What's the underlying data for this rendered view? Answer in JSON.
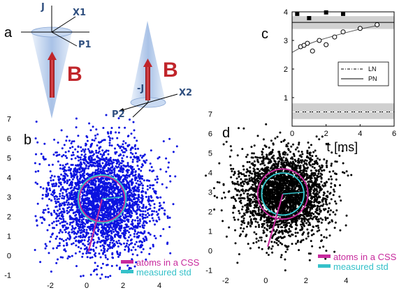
{
  "panels": {
    "a": "a",
    "b": "b",
    "c": "c",
    "d": "d"
  },
  "diagram": {
    "cone1_labels": {
      "J": "J",
      "X": "X1",
      "P": "P1",
      "B": "B"
    },
    "cone2_labels": {
      "J": "-J",
      "X": "X2",
      "P": "P2",
      "B": "B"
    },
    "colors": {
      "cone": "#a9c4ea",
      "arrow": "#c0252a",
      "label": "#2f4f7f"
    }
  },
  "chart_data": [
    {
      "panel": "c",
      "type": "scatter",
      "xlabel": "τ [ms]",
      "ylabel": "",
      "xlim": [
        0,
        6
      ],
      "ylim": [
        0,
        4
      ],
      "xticks": [
        "0",
        "2",
        "4",
        "6"
      ],
      "yticks": [
        "1",
        "2",
        "3",
        "4"
      ],
      "series": [
        {
          "name": "",
          "marker": "filled-square",
          "x": [
            0.3,
            1.0,
            2.0,
            3.0
          ],
          "y": [
            3.93,
            3.78,
            3.98,
            3.93
          ]
        },
        {
          "name": "",
          "marker": "open-circle",
          "x": [
            0.5,
            0.7,
            0.9,
            1.2,
            1.6,
            2.0,
            2.5,
            3.0,
            4.0,
            5.0
          ],
          "y": [
            2.78,
            2.83,
            2.9,
            2.63,
            3.0,
            2.85,
            3.12,
            3.3,
            3.42,
            3.55
          ]
        }
      ],
      "lines": [
        {
          "name": "PN",
          "style": "solid",
          "y": 3.63
        },
        {
          "name": "PN",
          "style": "solid",
          "y": 0.5
        },
        {
          "name": "LN",
          "style": "dash-dot",
          "y": 0.5
        }
      ],
      "bands": [
        {
          "y": [
            3.4,
            3.85
          ]
        },
        {
          "y": [
            0.25,
            0.8
          ]
        }
      ],
      "fit_curve": {
        "x": [
          0,
          0.5,
          1,
          1.5,
          2,
          3,
          4,
          5
        ],
        "y": [
          2.58,
          2.75,
          2.88,
          2.99,
          3.08,
          3.25,
          3.4,
          3.52
        ]
      },
      "legend": [
        "LN",
        "PN"
      ]
    },
    {
      "panel": "b",
      "type": "scatter",
      "xlim": [
        -3,
        5
      ],
      "ylim": [
        -1.2,
        7.2
      ],
      "xticks": [
        "-2",
        "0",
        "2",
        "4"
      ],
      "yticks": [
        "-1",
        "0",
        "1",
        "2",
        "3",
        "4",
        "5",
        "6",
        "7"
      ],
      "cloud": {
        "center": [
          0.85,
          2.9
        ],
        "std": 1.45,
        "count": 3000,
        "color": "#0b13e0"
      },
      "circles": [
        {
          "name": "atoms in a CSS",
          "r": 1.25,
          "color": "#c72a9d"
        },
        {
          "name": "measured std",
          "r": 1.32,
          "color": "#35c1c9"
        }
      ],
      "radius_line": {
        "from": [
          0.1,
          0.2
        ],
        "to": [
          0.85,
          2.9
        ]
      },
      "legend": [
        "atoms in a CSS",
        "measured std"
      ]
    },
    {
      "panel": "d",
      "type": "scatter",
      "xlim": [
        -3,
        5
      ],
      "ylim": [
        -1.2,
        7.2
      ],
      "xticks": [
        "-2",
        "0",
        "2",
        "4"
      ],
      "yticks": [
        "-1",
        "0",
        "1",
        "2",
        "3",
        "4",
        "5",
        "6",
        "7"
      ],
      "cloud": {
        "center": [
          0.85,
          2.9
        ],
        "std": 1.1,
        "count": 3000,
        "color": "#000000"
      },
      "circles": [
        {
          "name": "atoms in a CSS",
          "r": 1.25,
          "color": "#c72a9d"
        },
        {
          "name": "measured std",
          "r": 1.05,
          "color": "#35c1c9"
        }
      ],
      "radius_line": {
        "from": [
          0.1,
          0.2
        ],
        "to": [
          0.85,
          2.9
        ]
      },
      "legend": [
        "atoms in a CSS",
        "measured std"
      ]
    }
  ]
}
